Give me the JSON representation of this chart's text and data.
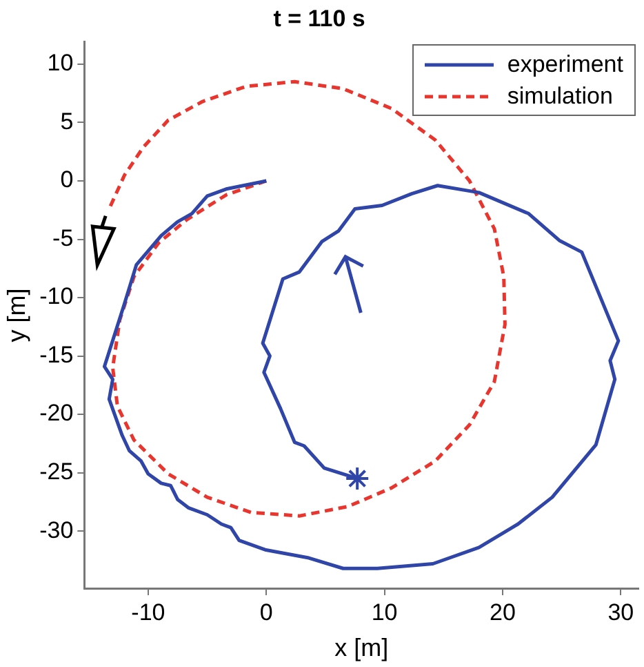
{
  "chart_data": {
    "type": "line",
    "title": "t = 110 s",
    "xlabel": "x [m]",
    "ylabel": "y [m]",
    "xlim": [
      -15.4,
      31.5
    ],
    "xticks": [
      -10,
      0,
      10,
      20,
      30
    ],
    "ylim": [
      -34.9,
      11.9
    ],
    "yticks": [
      -30,
      -25,
      -20,
      -15,
      -10,
      -5,
      0,
      5,
      10
    ],
    "grid": false,
    "legend": "top right",
    "marker": "none",
    "series": [
      {
        "name": "experiment",
        "color": "#2f45a8",
        "line_style": "solid",
        "x": [
          0,
          -3.4,
          -5.0,
          -6.3,
          -7.5,
          -8.9,
          -11.0,
          -12.0,
          -13.7,
          -13.0,
          -13.3,
          -12.2,
          -11.6,
          -10.6,
          -10.0,
          -8.9,
          -8.1,
          -7.5,
          -6.6,
          -5.0,
          -3.8,
          -3.0,
          -2.3,
          -0.1,
          3.6,
          6.5,
          9.4,
          14.1,
          18.0,
          21.3,
          24.2,
          27.9,
          29.5,
          29.1,
          29.8,
          26.7,
          24.8,
          22.2,
          18.0,
          14.5,
          12.3,
          9.8,
          7.5,
          6.1,
          4.7,
          2.8,
          1.4,
          -0.3,
          0.3,
          -0.2,
          1.2,
          2.4,
          3.2,
          4.9,
          7.7
        ],
        "values": [
          0,
          -0.7,
          -1.3,
          -2.8,
          -3.5,
          -4.7,
          -7.2,
          -10.5,
          -15.9,
          -17.0,
          -18.7,
          -21.8,
          -23.1,
          -24.0,
          -25.1,
          -25.9,
          -26.1,
          -27.3,
          -28.0,
          -28.6,
          -29.4,
          -29.7,
          -30.8,
          -31.6,
          -32.3,
          -33.2,
          -33.2,
          -32.8,
          -31.4,
          -29.4,
          -27.1,
          -22.6,
          -17.0,
          -15.4,
          -13.7,
          -6.1,
          -5.1,
          -2.8,
          -1.0,
          -0.4,
          -1.1,
          -2.1,
          -2.4,
          -4.3,
          -5.2,
          -7.8,
          -8.4,
          -13.9,
          -15.0,
          -16.4,
          -19.5,
          -22.4,
          -22.7,
          -24.6,
          -25.5
        ]
      },
      {
        "name": "simulation",
        "color": "#e8352e",
        "line_style": "dashed",
        "x": [
          0,
          -3.4,
          -6.7,
          -9.1,
          -11.2,
          -12.4,
          -13.0,
          -12.6,
          -11.2,
          -8.3,
          -5.0,
          -1.3,
          2.8,
          6.9,
          10.6,
          14.3,
          17.2,
          19.3,
          20.2,
          20.1,
          19.3,
          17.2,
          14.3,
          10.6,
          6.5,
          2.4,
          -1.7,
          -5.4,
          -8.3,
          -10.4,
          -12.0,
          -13.3
        ],
        "values": [
          0,
          -1.2,
          -3.3,
          -5.3,
          -8.2,
          -11.9,
          -16.0,
          -19.3,
          -22.2,
          -25.1,
          -27.1,
          -28.4,
          -28.7,
          -27.9,
          -26.3,
          -24.0,
          -20.9,
          -17.2,
          -12.3,
          -8.2,
          -4.1,
          0.0,
          3.5,
          6.2,
          7.9,
          8.5,
          8.1,
          6.8,
          5.2,
          2.9,
          0.5,
          -2.4
        ]
      }
    ]
  }
}
